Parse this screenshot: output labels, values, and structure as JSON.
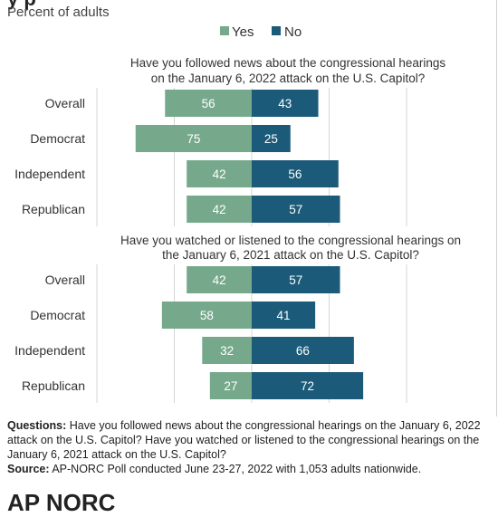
{
  "title": "y                         p",
  "subtitle": "Percent of adults",
  "legend": [
    {
      "label": "Yes",
      "color": "#76a98c"
    },
    {
      "label": "No",
      "color": "#1b5a78"
    }
  ],
  "chart_data": [
    {
      "type": "bar",
      "title": "Have you followed news about the congressional hearings on the January 6, 2022 attack on the U.S. Capitol?",
      "categories": [
        "Overall",
        "Democrat",
        "Independent",
        "Republican"
      ],
      "series": [
        {
          "name": "Yes",
          "values": [
            56,
            75,
            42,
            42
          ]
        },
        {
          "name": "No",
          "values": [
            43,
            25,
            56,
            57
          ]
        }
      ]
    },
    {
      "type": "bar",
      "title": "Have you watched or listened to the congressional hearings on the January 6, 2021 attack on the U.S. Capitol?",
      "categories": [
        "Overall",
        "Democrat",
        "Independent",
        "Republican"
      ],
      "series": [
        {
          "name": "Yes",
          "values": [
            42,
            58,
            32,
            27
          ]
        },
        {
          "name": "No",
          "values": [
            57,
            41,
            66,
            72
          ]
        }
      ]
    }
  ],
  "footnote": {
    "questions_label": "Questions:",
    "questions_text": "Have you followed news about the congressional hearings on the January 6, 2022 attack on the U.S. Capitol? Have you watched or listened to the congressional hearings on the January 6, 2021 attack on the U.S. Capitol?",
    "source_label": "Source:",
    "source_text": "AP-NORC Poll conducted June 23-27, 2022 with 1,053 adults nationwide."
  },
  "logo_text": "AP  NORC"
}
